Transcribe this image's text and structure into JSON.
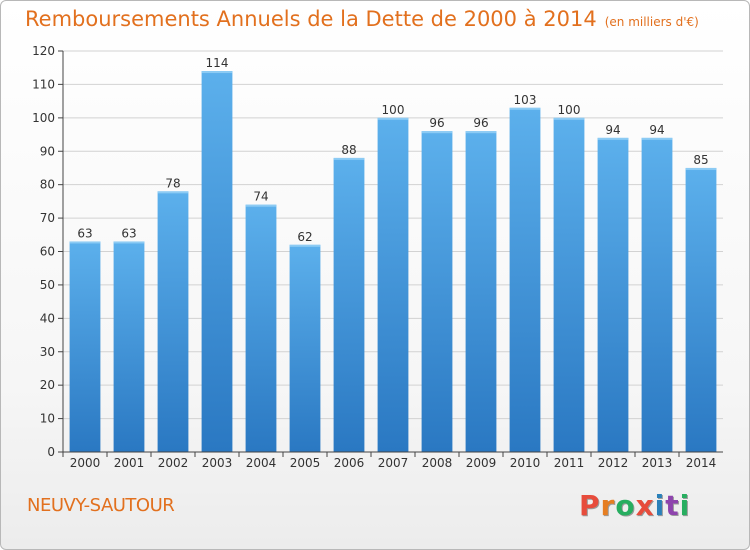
{
  "chart_data": {
    "type": "bar",
    "title": "Remboursements Annuels de la Dette de 2000 à 2014",
    "subtitle": "(en milliers d'€)",
    "xlabel": "",
    "ylabel": "",
    "ylim": [
      0,
      120
    ],
    "yticks": [
      0,
      10,
      20,
      30,
      40,
      50,
      60,
      70,
      80,
      90,
      100,
      110,
      120
    ],
    "grid": true,
    "categories": [
      "2000",
      "2001",
      "2002",
      "2003",
      "2004",
      "2005",
      "2006",
      "2007",
      "2008",
      "2009",
      "2010",
      "2011",
      "2012",
      "2013",
      "2014"
    ],
    "values": [
      63,
      63,
      78,
      114,
      74,
      62,
      88,
      100,
      96,
      96,
      103,
      100,
      94,
      94,
      85
    ],
    "bar_color": "#3a92d8"
  },
  "footer": {
    "town": "NEUVY-SAUTOUR",
    "logo": {
      "letters": [
        "P",
        "r",
        "o",
        "x",
        "i",
        "t",
        "i"
      ],
      "colors": [
        "#e74c3c",
        "#e67e22",
        "#27ae60",
        "#e74c3c",
        "#2980b9",
        "#8e44ad",
        "#27ae60"
      ]
    }
  },
  "colors": {
    "accent": "#e2701e",
    "grid": "#d2d2d2",
    "axis": "#444444"
  }
}
